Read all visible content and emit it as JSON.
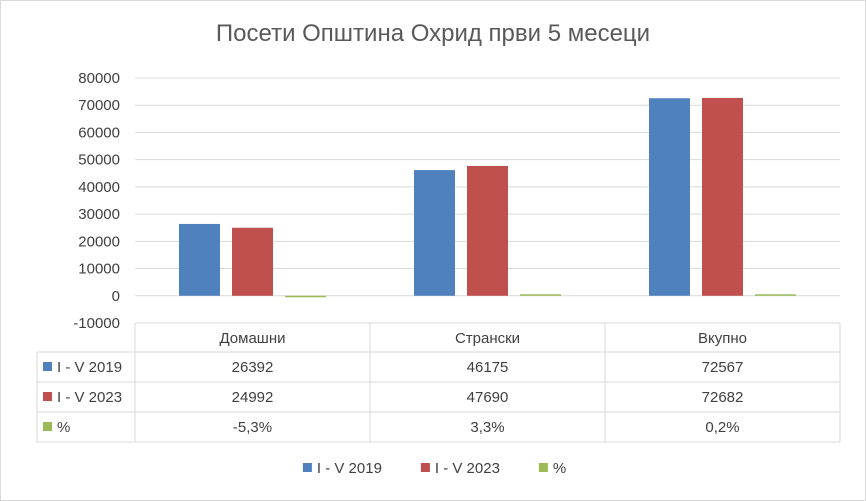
{
  "chart_data": {
    "type": "bar",
    "title": "Посети Општина Охрид први 5 месеци",
    "categories": [
      "Домашни",
      "Странски",
      "Вкупно"
    ],
    "ylim": [
      -10000,
      80000
    ],
    "yticks": [
      "80000",
      "70000",
      "60000",
      "50000",
      "40000",
      "30000",
      "20000",
      "10000",
      "0",
      "-10000"
    ],
    "grid": true,
    "legend_position": "bottom",
    "series": [
      {
        "name": "I - V 2019",
        "color": "#4f81bd",
        "values": [
          26392,
          46175,
          72567
        ],
        "labels": [
          "26392",
          "46175",
          "72567"
        ]
      },
      {
        "name": "I - V 2023",
        "color": "#c0504d",
        "values": [
          24992,
          47690,
          72682
        ],
        "labels": [
          "24992",
          "47690",
          "72682"
        ]
      },
      {
        "name": "%",
        "color": "#9bbb59",
        "values": [
          -5.3,
          3.3,
          0.2
        ],
        "labels": [
          "-5,3%",
          "3,3%",
          "0,2%"
        ]
      }
    ]
  }
}
